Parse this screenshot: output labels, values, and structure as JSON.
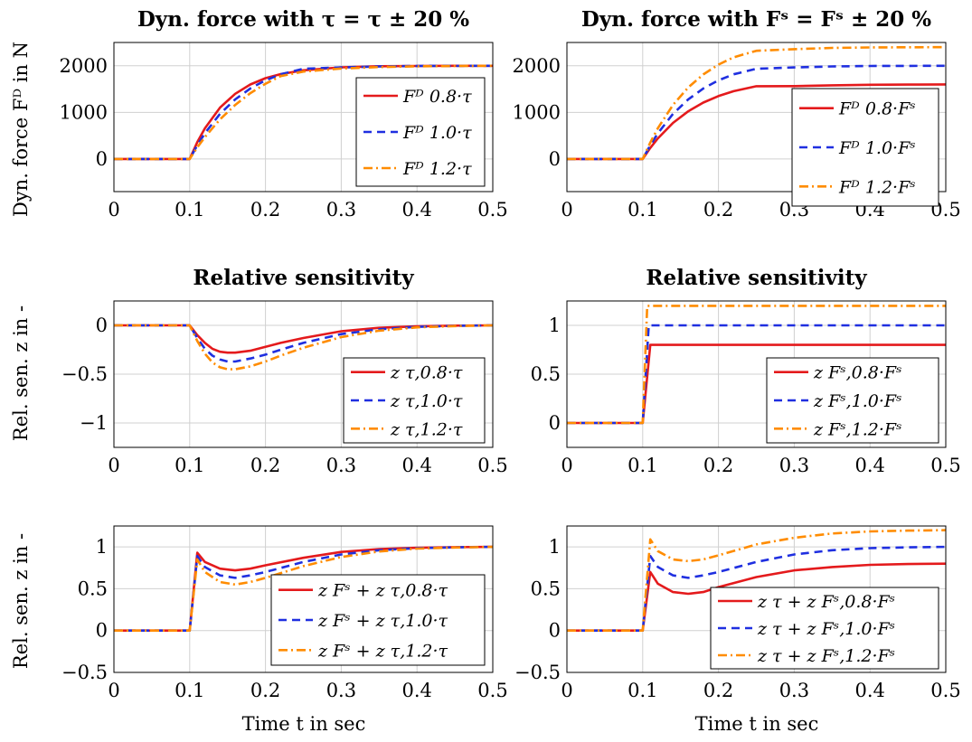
{
  "figure": {
    "ylabel_row1": "Dyn. force Fᴰ in N",
    "ylabel_row2": "Rel. sen. z in -",
    "ylabel_row3": "Rel. sen. z in -",
    "xlabel": "Time t in sec"
  },
  "colors": {
    "s08": "#e41a1c",
    "s10": "#1f2fe0",
    "s12": "#ff8c00"
  },
  "chart_data": [
    {
      "id": "p11",
      "type": "line",
      "title": "Dyn. force with τ = τ ± 20 %",
      "xlabel": "",
      "ylabel": "Dyn. force Fᴰ in N",
      "xlim": [
        0,
        0.5
      ],
      "ylim": [
        -700,
        2500
      ],
      "xticks": [
        0,
        0.1,
        0.2,
        0.3,
        0.4,
        0.5
      ],
      "xtick_labels": [
        "0",
        "0.1",
        "0.2",
        "0.3",
        "0.4",
        "0.5"
      ],
      "yticks": [
        0,
        1000,
        2000
      ],
      "ytick_labels": [
        "0",
        "1000",
        "2000"
      ],
      "legend": "right-center",
      "series": [
        {
          "name": "Fᴰ 0.8·τ",
          "style": "solid",
          "x": [
            0,
            0.1,
            0.11,
            0.12,
            0.14,
            0.16,
            0.18,
            0.2,
            0.22,
            0.25,
            0.3,
            0.35,
            0.4,
            0.45,
            0.5
          ],
          "y": [
            0,
            0,
            361,
            657,
            1101,
            1399,
            1599,
            1733,
            1821,
            1902,
            1967,
            1989,
            1996,
            1999,
            2000
          ]
        },
        {
          "name": "Fᴰ 1.0·τ",
          "style": "dashed",
          "x": [
            0,
            0.1,
            0.11,
            0.12,
            0.14,
            0.16,
            0.18,
            0.2,
            0.22,
            0.25,
            0.3,
            0.35,
            0.4,
            0.45,
            0.5
          ],
          "y": [
            0,
            0,
            295,
            551,
            967,
            1279,
            1512,
            1687,
            1817,
            1935,
            1964,
            1987,
            1995,
            1998,
            2000
          ]
        },
        {
          "name": "Fᴰ 1.2·τ",
          "style": "dashdot",
          "x": [
            0,
            0.1,
            0.11,
            0.12,
            0.14,
            0.16,
            0.18,
            0.2,
            0.22,
            0.25,
            0.3,
            0.35,
            0.4,
            0.45,
            0.5
          ],
          "y": [
            0,
            0,
            248,
            470,
            850,
            1160,
            1412,
            1614,
            1778,
            1876,
            1941,
            1972,
            1988,
            1996,
            2000
          ]
        }
      ]
    },
    {
      "id": "p12",
      "type": "line",
      "title": "Dyn. force with Fˢ = Fˢ ± 20 %",
      "xlabel": "",
      "ylabel": "",
      "xlim": [
        0,
        0.5
      ],
      "ylim": [
        -700,
        2500
      ],
      "xticks": [
        0,
        0.1,
        0.2,
        0.3,
        0.4,
        0.5
      ],
      "xtick_labels": [
        "0",
        "0.1",
        "0.2",
        "0.3",
        "0.4",
        "0.5"
      ],
      "yticks": [
        0,
        1000,
        2000
      ],
      "ytick_labels": [
        "0",
        "1000",
        "2000"
      ],
      "legend": "right-center",
      "series": [
        {
          "name": "Fᴰ 0.8·Fˢ",
          "style": "solid",
          "x": [
            0,
            0.1,
            0.11,
            0.12,
            0.14,
            0.16,
            0.18,
            0.2,
            0.22,
            0.25,
            0.3,
            0.35,
            0.4,
            0.45,
            0.5
          ],
          "y": [
            0,
            0,
            236,
            442,
            774,
            1023,
            1210,
            1350,
            1455,
            1561,
            1563,
            1580,
            1593,
            1597,
            1600
          ]
        },
        {
          "name": "Fᴰ 1.0·Fˢ",
          "style": "dashed",
          "x": [
            0,
            0.1,
            0.11,
            0.12,
            0.14,
            0.16,
            0.18,
            0.2,
            0.22,
            0.25,
            0.3,
            0.35,
            0.4,
            0.45,
            0.5
          ],
          "y": [
            0,
            0,
            295,
            551,
            967,
            1279,
            1512,
            1687,
            1817,
            1935,
            1964,
            1987,
            1995,
            1998,
            2000
          ]
        },
        {
          "name": "Fᴰ 1.2·Fˢ",
          "style": "dashdot",
          "x": [
            0,
            0.1,
            0.11,
            0.12,
            0.14,
            0.16,
            0.18,
            0.2,
            0.22,
            0.25,
            0.3,
            0.35,
            0.4,
            0.45,
            0.5
          ],
          "y": [
            0,
            0,
            354,
            661,
            1160,
            1535,
            1814,
            2024,
            2181,
            2322,
            2357,
            2384,
            2394,
            2398,
            2400
          ]
        }
      ]
    },
    {
      "id": "p21",
      "type": "line",
      "title": "Relative sensitivity",
      "xlabel": "",
      "ylabel": "Rel. sen. z in -",
      "xlim": [
        0,
        0.5
      ],
      "ylim": [
        -1.25,
        0.25
      ],
      "xticks": [
        0,
        0.1,
        0.2,
        0.3,
        0.4,
        0.5
      ],
      "xtick_labels": [
        "0",
        "0.1",
        "0.2",
        "0.3",
        "0.4",
        "0.5"
      ],
      "yticks": [
        -1,
        -0.5,
        0
      ],
      "ytick_labels": [
        "−1",
        "−0.5",
        "0"
      ],
      "legend": "bottom-right",
      "series": [
        {
          "name": "z τ,0.8·τ",
          "style": "solid",
          "x": [
            0,
            0.1,
            0.11,
            0.12,
            0.13,
            0.14,
            0.15,
            0.16,
            0.18,
            0.2,
            0.22,
            0.25,
            0.3,
            0.35,
            0.4,
            0.45,
            0.5
          ],
          "y": [
            0,
            0,
            -0.1,
            -0.18,
            -0.24,
            -0.27,
            -0.28,
            -0.28,
            -0.26,
            -0.22,
            -0.18,
            -0.13,
            -0.06,
            -0.025,
            -0.01,
            -0.003,
            0
          ]
        },
        {
          "name": "z τ,1.0·τ",
          "style": "dashed",
          "x": [
            0,
            0.1,
            0.11,
            0.12,
            0.13,
            0.14,
            0.15,
            0.16,
            0.18,
            0.2,
            0.22,
            0.25,
            0.3,
            0.35,
            0.4,
            0.45,
            0.5
          ],
          "y": [
            0,
            0,
            -0.13,
            -0.24,
            -0.31,
            -0.35,
            -0.37,
            -0.37,
            -0.34,
            -0.3,
            -0.25,
            -0.18,
            -0.09,
            -0.04,
            -0.015,
            -0.005,
            0
          ]
        },
        {
          "name": "z τ,1.2·τ",
          "style": "dashdot",
          "x": [
            0,
            0.1,
            0.11,
            0.12,
            0.13,
            0.14,
            0.15,
            0.16,
            0.18,
            0.2,
            0.22,
            0.25,
            0.3,
            0.35,
            0.4,
            0.45,
            0.5
          ],
          "y": [
            0,
            0,
            -0.16,
            -0.29,
            -0.38,
            -0.43,
            -0.45,
            -0.45,
            -0.42,
            -0.37,
            -0.31,
            -0.23,
            -0.12,
            -0.055,
            -0.02,
            -0.007,
            0
          ]
        }
      ]
    },
    {
      "id": "p22",
      "type": "line",
      "title": "Relative sensitivity",
      "xlabel": "",
      "ylabel": "",
      "xlim": [
        0,
        0.5
      ],
      "ylim": [
        -0.25,
        1.25
      ],
      "xticks": [
        0,
        0.1,
        0.2,
        0.3,
        0.4,
        0.5
      ],
      "xtick_labels": [
        "0",
        "0.1",
        "0.2",
        "0.3",
        "0.4",
        "0.5"
      ],
      "yticks": [
        0,
        0.5,
        1
      ],
      "ytick_labels": [
        "0",
        "0.5",
        "1"
      ],
      "legend": "bottom-right",
      "series": [
        {
          "name": "z Fˢ,0.8·Fˢ",
          "style": "solid",
          "x": [
            0,
            0.1,
            0.11,
            0.5
          ],
          "y": [
            0,
            0,
            0.8,
            0.8
          ]
        },
        {
          "name": "z Fˢ,1.0·Fˢ",
          "style": "dashed",
          "x": [
            0,
            0.1,
            0.108,
            0.5
          ],
          "y": [
            0,
            0,
            1.0,
            1.0
          ]
        },
        {
          "name": "z Fˢ,1.2·Fˢ",
          "style": "dashdot",
          "x": [
            0,
            0.1,
            0.106,
            0.5
          ],
          "y": [
            0,
            0,
            1.2,
            1.2
          ]
        }
      ]
    },
    {
      "id": "p31",
      "type": "line",
      "title": "",
      "xlabel": "Time t in sec",
      "ylabel": "Rel. sen. z in -",
      "xlim": [
        0,
        0.5
      ],
      "ylim": [
        -0.5,
        1.25
      ],
      "xticks": [
        0,
        0.1,
        0.2,
        0.3,
        0.4,
        0.5
      ],
      "xtick_labels": [
        "0",
        "0.1",
        "0.2",
        "0.3",
        "0.4",
        "0.5"
      ],
      "yticks": [
        -0.5,
        0,
        0.5,
        1
      ],
      "ytick_labels": [
        "−0.5",
        "0",
        "0.5",
        "1"
      ],
      "legend": "bottom-right",
      "series": [
        {
          "name": "z Fˢ + z τ,0.8·τ",
          "style": "solid",
          "x": [
            0,
            0.1,
            0.11,
            0.12,
            0.14,
            0.16,
            0.18,
            0.2,
            0.25,
            0.3,
            0.35,
            0.4,
            0.45,
            0.5
          ],
          "y": [
            0,
            0,
            0.93,
            0.82,
            0.74,
            0.72,
            0.74,
            0.78,
            0.87,
            0.94,
            0.975,
            0.99,
            0.997,
            1.0
          ]
        },
        {
          "name": "z Fˢ + z τ,1.0·τ",
          "style": "dashed",
          "x": [
            0,
            0.1,
            0.11,
            0.12,
            0.14,
            0.16,
            0.18,
            0.2,
            0.25,
            0.3,
            0.35,
            0.4,
            0.45,
            0.5
          ],
          "y": [
            0,
            0,
            0.89,
            0.76,
            0.66,
            0.63,
            0.66,
            0.7,
            0.82,
            0.91,
            0.96,
            0.985,
            0.995,
            1.0
          ]
        },
        {
          "name": "z Fˢ + z τ,1.2·τ",
          "style": "dashdot",
          "x": [
            0,
            0.1,
            0.11,
            0.12,
            0.14,
            0.16,
            0.18,
            0.2,
            0.25,
            0.3,
            0.35,
            0.4,
            0.45,
            0.5
          ],
          "y": [
            0,
            0,
            0.85,
            0.7,
            0.58,
            0.55,
            0.58,
            0.63,
            0.77,
            0.88,
            0.945,
            0.98,
            0.993,
            1.0
          ]
        }
      ]
    },
    {
      "id": "p32",
      "type": "line",
      "title": "",
      "xlabel": "Time t in sec",
      "ylabel": "",
      "xlim": [
        0,
        0.5
      ],
      "ylim": [
        -0.5,
        1.25
      ],
      "xticks": [
        0,
        0.1,
        0.2,
        0.3,
        0.4,
        0.5
      ],
      "xtick_labels": [
        "0",
        "0.1",
        "0.2",
        "0.3",
        "0.4",
        "0.5"
      ],
      "yticks": [
        -0.5,
        0,
        0.5,
        1
      ],
      "ytick_labels": [
        "−0.5",
        "0",
        "0.5",
        "1"
      ],
      "legend": "bottom-right",
      "series": [
        {
          "name": "z τ + z Fˢ,0.8·Fˢ",
          "style": "solid",
          "x": [
            0,
            0.1,
            0.11,
            0.12,
            0.14,
            0.16,
            0.18,
            0.2,
            0.25,
            0.3,
            0.35,
            0.4,
            0.45,
            0.5
          ],
          "y": [
            0,
            0,
            0.7,
            0.56,
            0.46,
            0.44,
            0.46,
            0.52,
            0.64,
            0.72,
            0.76,
            0.785,
            0.795,
            0.8
          ]
        },
        {
          "name": "z τ + z Fˢ,1.0·Fˢ",
          "style": "dashed",
          "x": [
            0,
            0.1,
            0.11,
            0.12,
            0.14,
            0.16,
            0.18,
            0.2,
            0.25,
            0.3,
            0.35,
            0.4,
            0.45,
            0.5
          ],
          "y": [
            0,
            0,
            0.89,
            0.76,
            0.66,
            0.63,
            0.66,
            0.7,
            0.82,
            0.91,
            0.96,
            0.985,
            0.995,
            1.0
          ]
        },
        {
          "name": "z τ + z Fˢ,1.2·Fˢ",
          "style": "dashdot",
          "x": [
            0,
            0.1,
            0.11,
            0.12,
            0.14,
            0.16,
            0.18,
            0.2,
            0.25,
            0.3,
            0.35,
            0.4,
            0.45,
            0.5
          ],
          "y": [
            0,
            0,
            1.09,
            0.95,
            0.85,
            0.83,
            0.85,
            0.9,
            1.03,
            1.11,
            1.16,
            1.185,
            1.195,
            1.2
          ]
        }
      ]
    }
  ]
}
